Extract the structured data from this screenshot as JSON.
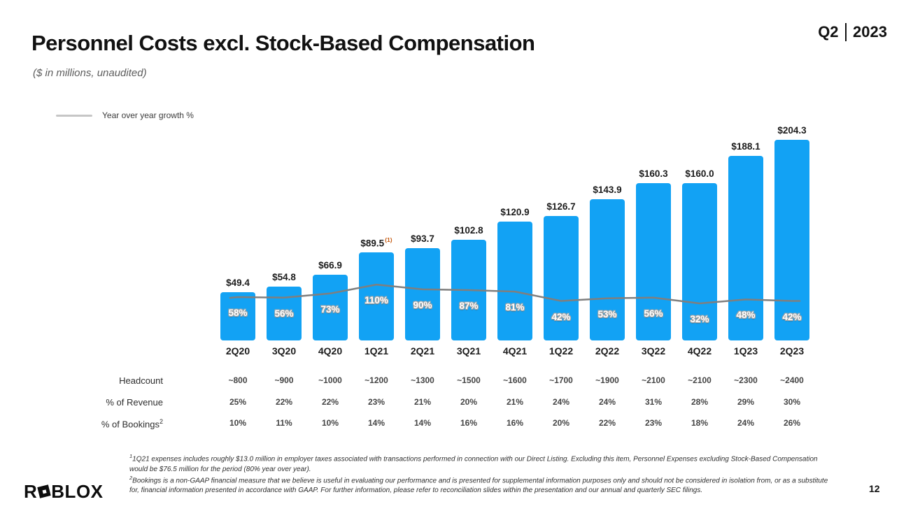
{
  "header": {
    "title": "Personnel Costs excl. Stock-Based Compensation",
    "subtitle": "($ in millions, unaudited)",
    "period_quarter": "Q2",
    "period_year": "2023"
  },
  "legend": {
    "yoy_label": "Year over year growth %"
  },
  "chart_data": {
    "type": "bar",
    "title": "Personnel Costs excl. Stock-Based Compensation",
    "subtitle": "($ in millions, unaudited)",
    "categories": [
      "2Q20",
      "3Q20",
      "4Q20",
      "1Q21",
      "2Q21",
      "3Q21",
      "4Q21",
      "1Q22",
      "2Q22",
      "3Q22",
      "4Q22",
      "1Q23",
      "2Q23"
    ],
    "series": [
      {
        "name": "Personnel costs excl. stock-based compensation ($M)",
        "values": [
          49.4,
          54.8,
          66.9,
          89.5,
          93.7,
          102.8,
          120.9,
          126.7,
          143.9,
          160.3,
          160.0,
          188.1,
          204.3
        ],
        "labels": [
          "$49.4",
          "$54.8",
          "$66.9",
          "$89.5",
          "$93.7",
          "$102.8",
          "$120.9",
          "$126.7",
          "$143.9",
          "$160.3",
          "$160.0",
          "$188.1",
          "$204.3"
        ]
      },
      {
        "name": "Year over year growth %",
        "values": [
          58,
          56,
          73,
          110,
          90,
          87,
          81,
          42,
          53,
          56,
          32,
          48,
          42
        ],
        "labels": [
          "58%",
          "56%",
          "73%",
          "110%",
          "90%",
          "87%",
          "81%",
          "42%",
          "53%",
          "56%",
          "32%",
          "48%",
          "42%"
        ]
      }
    ],
    "annotations": {
      "footnote_marker": "(1)",
      "footnote_marker_category": "1Q21"
    },
    "colors": {
      "bar": "#12a2f4",
      "line": "#7f7f7f",
      "marker": "#c55a11",
      "legend_swatch": "#c6c6c6"
    },
    "legend_position": "top-left",
    "grid": false,
    "xlabel": "",
    "ylabel": ""
  },
  "table": {
    "rows": [
      {
        "label": "Headcount",
        "sup": "",
        "values": [
          "~800",
          "~900",
          "~1000",
          "~1200",
          "~1300",
          "~1500",
          "~1600",
          "~1700",
          "~1900",
          "~2100",
          "~2100",
          "~2300",
          "~2400"
        ]
      },
      {
        "label": "% of Revenue",
        "sup": "",
        "values": [
          "25%",
          "22%",
          "22%",
          "23%",
          "21%",
          "20%",
          "21%",
          "24%",
          "24%",
          "31%",
          "28%",
          "29%",
          "30%"
        ]
      },
      {
        "label": "% of Bookings",
        "sup": "2",
        "values": [
          "10%",
          "11%",
          "10%",
          "14%",
          "14%",
          "16%",
          "16%",
          "20%",
          "22%",
          "23%",
          "18%",
          "24%",
          "26%"
        ]
      }
    ]
  },
  "footnotes": [
    {
      "sup": "1",
      "text": "1Q21 expenses includes roughly $13.0 million in employer taxes associated with transactions performed in connection with our Direct Listing. Excluding this item, Personnel Expenses excluding Stock-Based Compensation would be $76.5 million for the period (80% year over year)."
    },
    {
      "sup": "2",
      "text": "Bookings is a non-GAAP financial measure that we believe is useful in evaluating our performance and is presented for supplemental information purposes only and should not be considered in isolation from, or as a substitute for, financial information presented in accordance with GAAP. For further information, please refer to reconciliation slides within the presentation and our annual and quarterly SEC filings."
    }
  ],
  "footer": {
    "logo_r": "R",
    "logo_blox": "BLOX",
    "page_number": "12"
  }
}
